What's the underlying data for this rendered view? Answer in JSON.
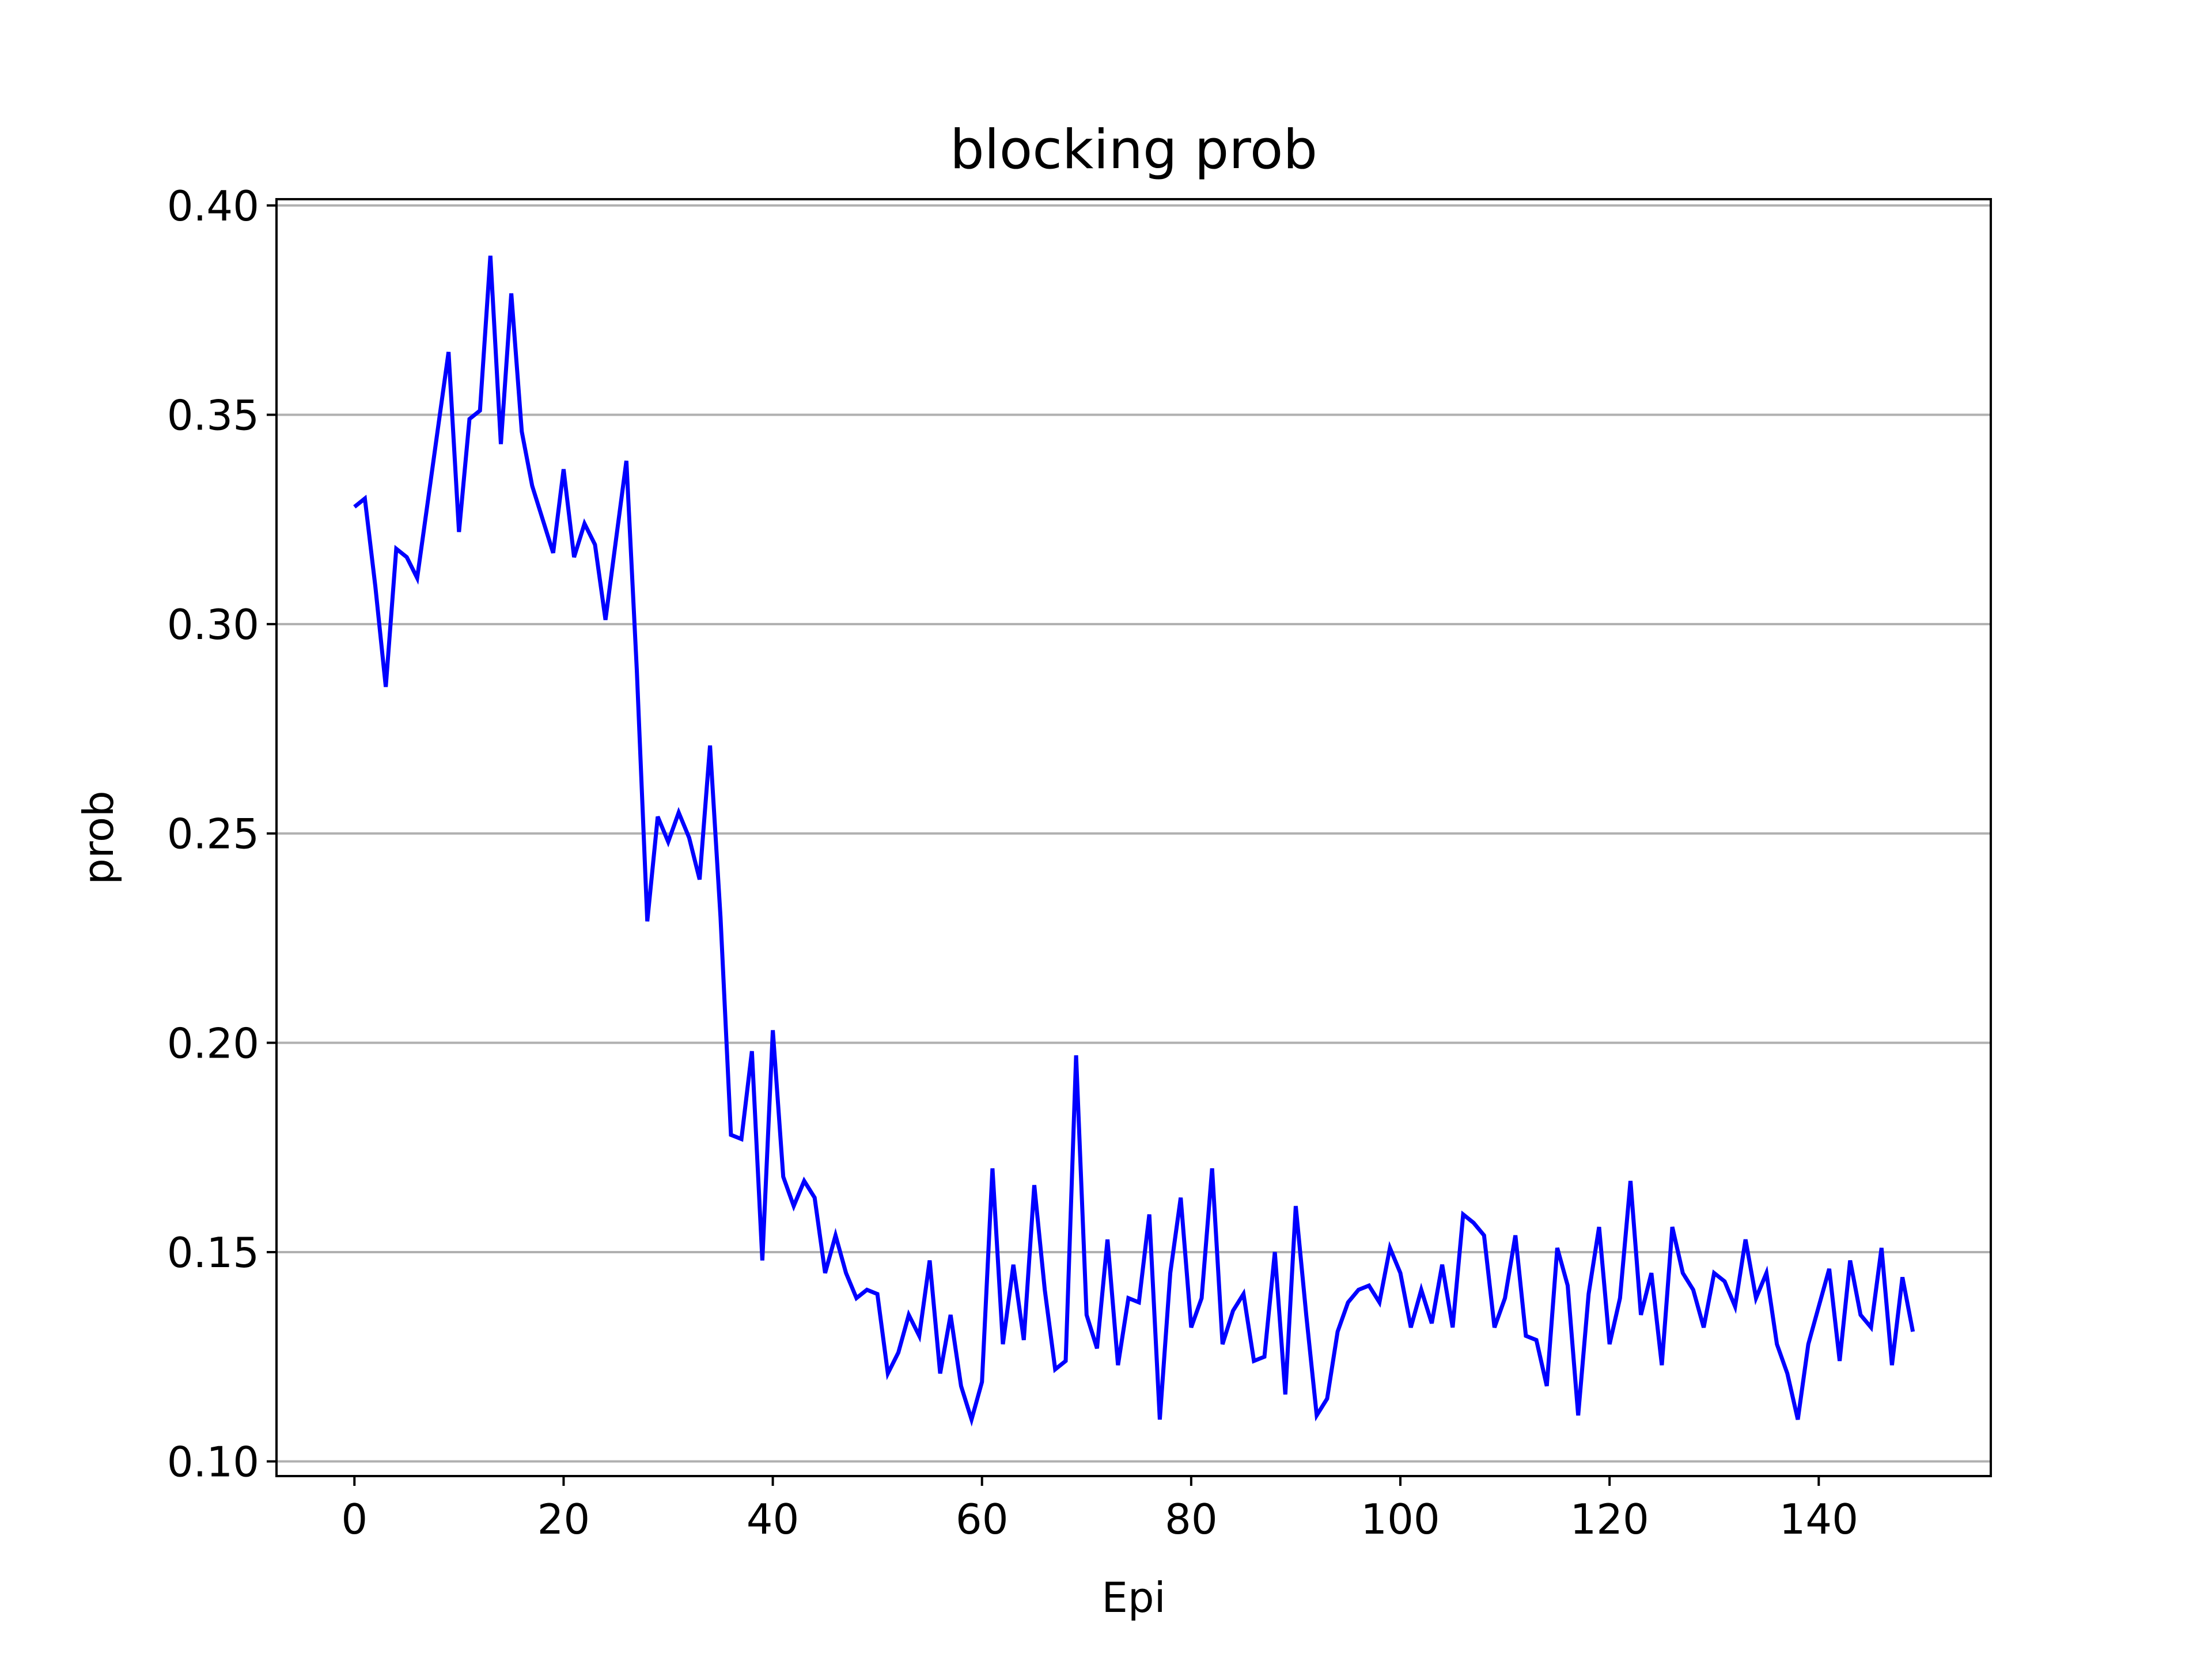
{
  "chart_data": {
    "type": "line",
    "title": "blocking prob",
    "xlabel": "Epi",
    "ylabel": "prob",
    "xlim": [
      -7.45,
      156.45
    ],
    "ylim": [
      0.0965,
      0.4015
    ],
    "xticks": [
      0,
      20,
      40,
      60,
      80,
      100,
      120,
      140
    ],
    "xtick_labels": [
      "0",
      "20",
      "40",
      "60",
      "80",
      "100",
      "120",
      "140"
    ],
    "yticks": [
      0.1,
      0.15,
      0.2,
      0.25,
      0.3,
      0.35,
      0.4
    ],
    "ytick_labels": [
      "0.10",
      "0.15",
      "0.20",
      "0.25",
      "0.30",
      "0.35",
      "0.40"
    ],
    "grid": "y",
    "line_color": "#0000ff",
    "grid_color": "#b0b0b0",
    "series": [
      {
        "values": [
          0.328,
          0.33,
          0.309,
          0.285,
          0.318,
          0.316,
          0.311,
          0.329,
          0.347,
          0.365,
          0.322,
          0.349,
          0.351,
          0.388,
          0.343,
          0.379,
          0.346,
          0.333,
          0.325,
          0.317,
          0.337,
          0.316,
          0.324,
          0.319,
          0.301,
          0.32,
          0.339,
          0.289,
          0.229,
          0.254,
          0.248,
          0.255,
          0.249,
          0.239,
          0.271,
          0.23,
          0.178,
          0.177,
          0.198,
          0.148,
          0.203,
          0.168,
          0.161,
          0.167,
          0.163,
          0.145,
          0.154,
          0.145,
          0.139,
          0.141,
          0.14,
          0.121,
          0.126,
          0.135,
          0.13,
          0.148,
          0.121,
          0.135,
          0.118,
          0.11,
          0.119,
          0.17,
          0.128,
          0.147,
          0.129,
          0.166,
          0.141,
          0.122,
          0.124,
          0.197,
          0.135,
          0.127,
          0.153,
          0.123,
          0.139,
          0.138,
          0.159,
          0.11,
          0.145,
          0.163,
          0.132,
          0.139,
          0.17,
          0.128,
          0.136,
          0.14,
          0.124,
          0.125,
          0.15,
          0.116,
          0.161,
          0.135,
          0.111,
          0.115,
          0.131,
          0.138,
          0.141,
          0.142,
          0.138,
          0.151,
          0.145,
          0.132,
          0.141,
          0.133,
          0.147,
          0.132,
          0.159,
          0.157,
          0.154,
          0.132,
          0.139,
          0.154,
          0.13,
          0.129,
          0.118,
          0.151,
          0.142,
          0.111,
          0.14,
          0.156,
          0.128,
          0.139,
          0.167,
          0.135,
          0.145,
          0.123,
          0.156,
          0.145,
          0.141,
          0.132,
          0.145,
          0.143,
          0.137,
          0.153,
          0.139,
          0.145,
          0.128,
          0.121,
          0.11,
          0.128,
          0.137,
          0.146,
          0.124,
          0.148,
          0.135,
          0.132,
          0.151,
          0.123,
          0.144,
          0.131
        ]
      }
    ]
  }
}
